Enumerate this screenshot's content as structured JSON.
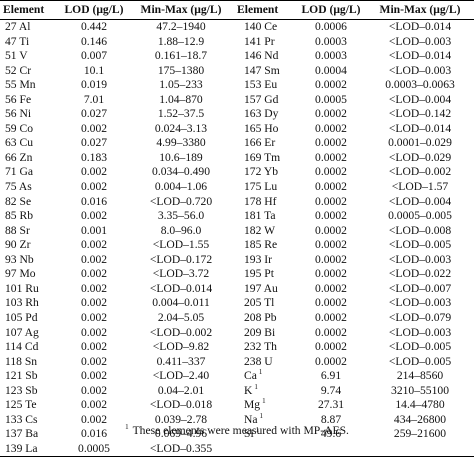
{
  "table": {
    "headers": [
      "Element",
      "LOD (μg/L)",
      "Min-Max (μg/L)",
      "Element",
      "LOD (μg/L)",
      "Min-Max (μg/L)"
    ],
    "rows": [
      [
        {
          "el": "27 Al",
          "lod": "0.442",
          "mm": "47.2–1940"
        },
        {
          "el": "140 Ce",
          "lod": "0.0006",
          "mm": "<LOD–0.014"
        }
      ],
      [
        {
          "el": "47 Ti",
          "lod": "0.146",
          "mm": "1.88–12.9"
        },
        {
          "el": "141 Pr",
          "lod": "0.0003",
          "mm": "<LOD–0.003"
        }
      ],
      [
        {
          "el": "51 V",
          "lod": "0.007",
          "mm": "0.161–18.7"
        },
        {
          "el": "146 Nd",
          "lod": "0.0003",
          "mm": "<LOD–0.014"
        }
      ],
      [
        {
          "el": "52 Cr",
          "lod": "10.1",
          "mm": "175–1380"
        },
        {
          "el": "147 Sm",
          "lod": "0.0004",
          "mm": "<LOD–0.003"
        }
      ],
      [
        {
          "el": "55 Mn",
          "lod": "0.019",
          "mm": "1.05–233"
        },
        {
          "el": "153 Eu",
          "lod": "0.0002",
          "mm": "0.0003–0.0063"
        }
      ],
      [
        {
          "el": "56 Fe",
          "lod": "7.01",
          "mm": "1.04–870"
        },
        {
          "el": "157 Gd",
          "lod": "0.0005",
          "mm": "<LOD–0.004"
        }
      ],
      [
        {
          "el": "56 Ni",
          "lod": "0.027",
          "mm": "1.52–37.5"
        },
        {
          "el": "163 Dy",
          "lod": "0.0002",
          "mm": "<LOD–0.142"
        }
      ],
      [
        {
          "el": "59 Co",
          "lod": "0.002",
          "mm": "0.024–3.13"
        },
        {
          "el": "165 Ho",
          "lod": "0.0002",
          "mm": "<LOD–0.014"
        }
      ],
      [
        {
          "el": "63 Cu",
          "lod": "0.027",
          "mm": "4.99–3380"
        },
        {
          "el": "166 Er",
          "lod": "0.0002",
          "mm": "0.0001–0.029"
        }
      ],
      [
        {
          "el": "66 Zn",
          "lod": "0.183",
          "mm": "10.6–189"
        },
        {
          "el": "169 Tm",
          "lod": "0.0002",
          "mm": "<LOD–0.029"
        }
      ],
      [
        {
          "el": "71 Ga",
          "lod": "0.002",
          "mm": "0.034–0.490"
        },
        {
          "el": "172 Yb",
          "lod": "0.0002",
          "mm": "<LOD–0.002"
        }
      ],
      [
        {
          "el": "75 As",
          "lod": "0.002",
          "mm": "0.004–1.06"
        },
        {
          "el": "175 Lu",
          "lod": "0.0002",
          "mm": "<LOD–1.57"
        }
      ],
      [
        {
          "el": "82 Se",
          "lod": "0.016",
          "mm": "<LOD–0.720"
        },
        {
          "el": "178 Hf",
          "lod": "0.0002",
          "mm": "<LOD–0.004"
        }
      ],
      [
        {
          "el": "85 Rb",
          "lod": "0.002",
          "mm": "3.35–56.0"
        },
        {
          "el": "181 Ta",
          "lod": "0.0002",
          "mm": "0.0005–0.005"
        }
      ],
      [
        {
          "el": "88 Sr",
          "lod": "0.001",
          "mm": "8.0–96.0"
        },
        {
          "el": "182 W",
          "lod": "0.0002",
          "mm": "<LOD–0.008"
        }
      ],
      [
        {
          "el": "90 Zr",
          "lod": "0.002",
          "mm": "<LOD–1.55"
        },
        {
          "el": "185 Re",
          "lod": "0.0002",
          "mm": "<LOD–0.005"
        }
      ],
      [
        {
          "el": "93 Nb",
          "lod": "0.002",
          "mm": "<LOD–0.172"
        },
        {
          "el": "193 Ir",
          "lod": "0.0002",
          "mm": "<LOD–0.003"
        }
      ],
      [
        {
          "el": "97 Mo",
          "lod": "0.002",
          "mm": "<LOD–3.72"
        },
        {
          "el": "195 Pt",
          "lod": "0.0002",
          "mm": "<LOD–0.022"
        }
      ],
      [
        {
          "el": "101 Ru",
          "lod": "0.002",
          "mm": "<LOD–0.014"
        },
        {
          "el": "197 Au",
          "lod": "0.0002",
          "mm": "<LOD–0.007"
        }
      ],
      [
        {
          "el": "103 Rh",
          "lod": "0.002",
          "mm": "0.004–0.011"
        },
        {
          "el": "205 Tl",
          "lod": "0.0002",
          "mm": "<LOD–0.003"
        }
      ],
      [
        {
          "el": "105 Pd",
          "lod": "0.002",
          "mm": "2.04–5.05"
        },
        {
          "el": "208 Pb",
          "lod": "0.0002",
          "mm": "<LOD–0.079"
        }
      ],
      [
        {
          "el": "107 Ag",
          "lod": "0.002",
          "mm": "<LOD–0.002"
        },
        {
          "el": "209 Bi",
          "lod": "0.0002",
          "mm": "<LOD–0.003"
        }
      ],
      [
        {
          "el": "114 Cd",
          "lod": "0.002",
          "mm": "<LOD–9.82"
        },
        {
          "el": "232 Th",
          "lod": "0.0002",
          "mm": "<LOD–0.005"
        }
      ],
      [
        {
          "el": "118 Sn",
          "lod": "0.002",
          "mm": "0.411–337"
        },
        {
          "el": "238 U",
          "lod": "0.0002",
          "mm": "<LOD–0.005"
        }
      ],
      [
        {
          "el": "121 Sb",
          "lod": "0.002",
          "mm": "<LOD–2.40"
        },
        {
          "el": "Ca",
          "sup": "1",
          "lod": "6.91",
          "mm": "214–8560"
        }
      ],
      [
        {
          "el": "123 Sb",
          "lod": "0.002",
          "mm": "0.04–2.01"
        },
        {
          "el": "K",
          "sup": "1",
          "lod": "9.74",
          "mm": "3210–55100"
        }
      ],
      [
        {
          "el": "125 Te",
          "lod": "0.002",
          "mm": "<LOD–0.018"
        },
        {
          "el": "Mg",
          "sup": "1",
          "lod": "27.31",
          "mm": "14.4–4780"
        }
      ],
      [
        {
          "el": "133 Cs",
          "lod": "0.002",
          "mm": "0.039–2.78"
        },
        {
          "el": "Na",
          "sup": "1",
          "lod": "8.87",
          "mm": "434–26800"
        }
      ],
      [
        {
          "el": "137 Ba",
          "lod": "0.016",
          "mm": "0.069–4.96"
        },
        {
          "el": "Si",
          "sup": "1",
          "lod": "49.6",
          "mm": "259–21600"
        }
      ],
      [
        {
          "el": "139 La",
          "lod": "0.0005",
          "mm": "<LOD–0.355"
        },
        {
          "el": "",
          "lod": "",
          "mm": ""
        }
      ]
    ]
  },
  "footnote": {
    "marker": "1",
    "text": "These elements were measured with MP-AES."
  }
}
